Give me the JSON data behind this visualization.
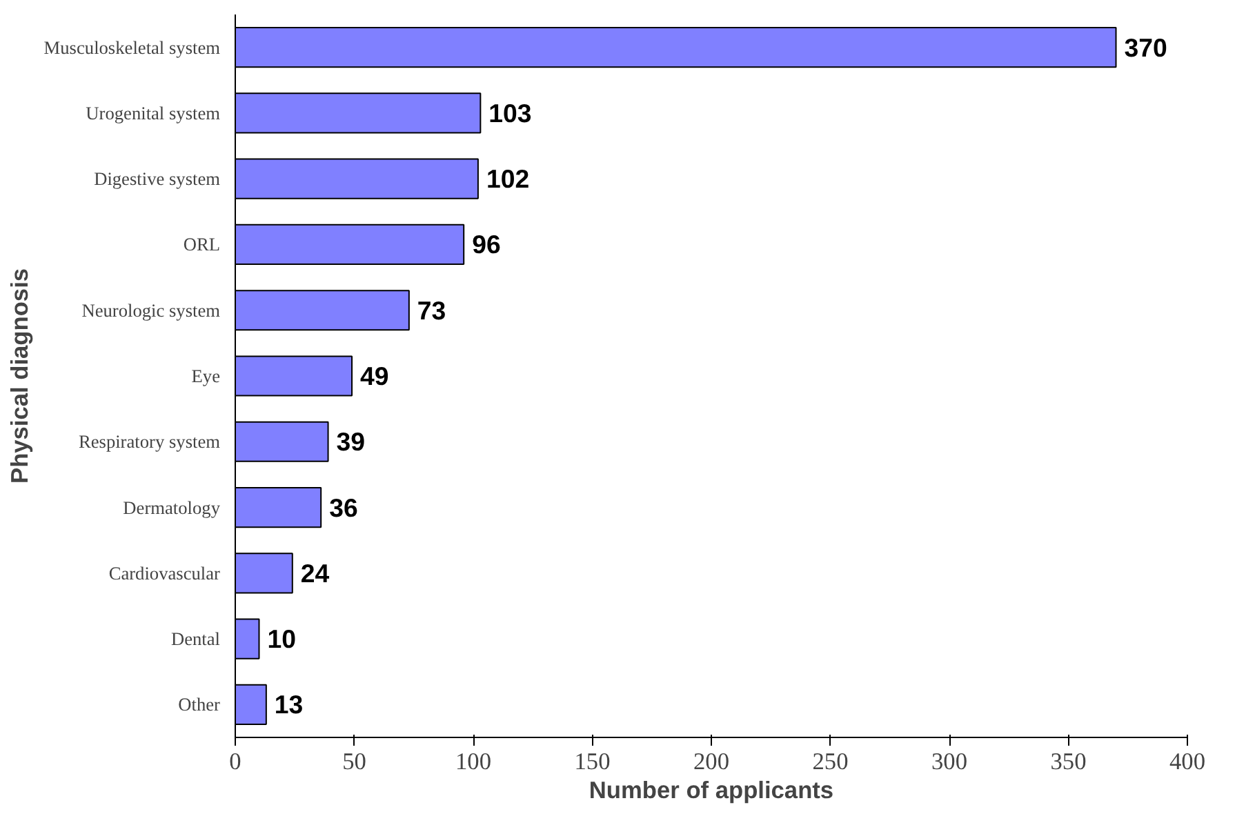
{
  "chart_data": {
    "type": "bar",
    "orientation": "horizontal",
    "xlabel": "Number of applicants",
    "ylabel": "Physical diagnosis",
    "categories": [
      "Musculoskeletal system",
      "Urogenital system",
      "Digestive system",
      "ORL",
      "Neurologic system",
      "Eye",
      "Respiratory system",
      "Dermatology",
      "Cardiovascular",
      "Dental",
      "Other"
    ],
    "values": [
      370,
      103,
      102,
      96,
      73,
      49,
      39,
      36,
      24,
      10,
      13
    ],
    "color": "#8080ff",
    "xlim": [
      0,
      400
    ],
    "xticks": [
      0,
      50,
      100,
      150,
      200,
      250,
      300,
      350,
      400
    ],
    "grid": false,
    "data_labels": true
  }
}
